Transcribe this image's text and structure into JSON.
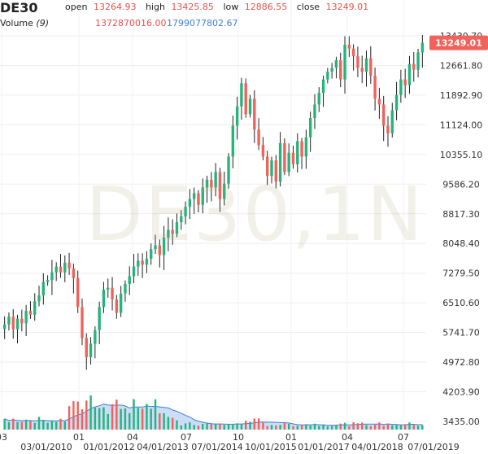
{
  "header": {
    "symbol": "DE30",
    "open_label": "open",
    "open_value": "13264.93",
    "high_label": "high",
    "high_value": "13425.85",
    "low_label": "low",
    "low_value": "12886.55",
    "close_label": "close",
    "close_value": "13249.01",
    "volume_label": "Volume",
    "volume_param": "(9)",
    "volume_value": "1372870016.00",
    "volume_ma_value": "1799077802.67"
  },
  "watermark": "DE30,1N",
  "colors": {
    "up": "#26b47d",
    "down": "#f0625a",
    "volume_area": "#a8c8f0",
    "volume_line": "#3f7fd6",
    "last_price_bg": "#f0625a"
  },
  "chart_data": {
    "type": "candlestick",
    "x_tick_labels": [
      "03",
      "03/01/2010",
      "01",
      "01/01/2012",
      "04",
      "04/01/2013",
      "07",
      "07/01/2014",
      "10",
      "10/01/2015",
      "01",
      "01/01/2017",
      "04",
      "04/01/2018",
      "07",
      "07/01/2019"
    ],
    "y_tick_labels": [
      "3435.00",
      "4203.90",
      "4972.80",
      "5741.70",
      "6510.60",
      "7279.50",
      "8048.40",
      "8817.30",
      "9586.20",
      "10355.10",
      "11124.00",
      "11892.90",
      "12661.80",
      "13430.70"
    ],
    "y_range": [
      3435.0,
      13430.7
    ],
    "last_price": "13249.01",
    "series_note_values": "monthly closes",
    "closes": [
      5950,
      6150,
      5820,
      6100,
      5980,
      6300,
      6200,
      6550,
      6700,
      7050,
      7100,
      7300,
      7450,
      7300,
      7550,
      7400,
      7150,
      6400,
      5600,
      5100,
      5450,
      5800,
      6400,
      6850,
      6900,
      6600,
      6250,
      6750,
      7000,
      7200,
      7450,
      7600,
      7500,
      7650,
      7900,
      8000,
      7750,
      8200,
      8400,
      8300,
      8600,
      8750,
      9000,
      9200,
      9350,
      9050,
      9500,
      9700,
      9500,
      9900,
      9200,
      9600,
      10300,
      11100,
      11600,
      12200,
      11400,
      11800,
      11000,
      10600,
      10300,
      9800,
      10200,
      9650,
      10650,
      9900,
      10400,
      10100,
      10700,
      10300,
      10800,
      11300,
      11650,
      11950,
      12300,
      12500,
      12600,
      12800,
      12300,
      13200,
      13100,
      12900,
      12600,
      12500,
      12850,
      12400,
      11800,
      11650,
      11100,
      10900,
      11500,
      11900,
      12300,
      12150,
      12700,
      12550,
      13000,
      13249
    ]
  }
}
